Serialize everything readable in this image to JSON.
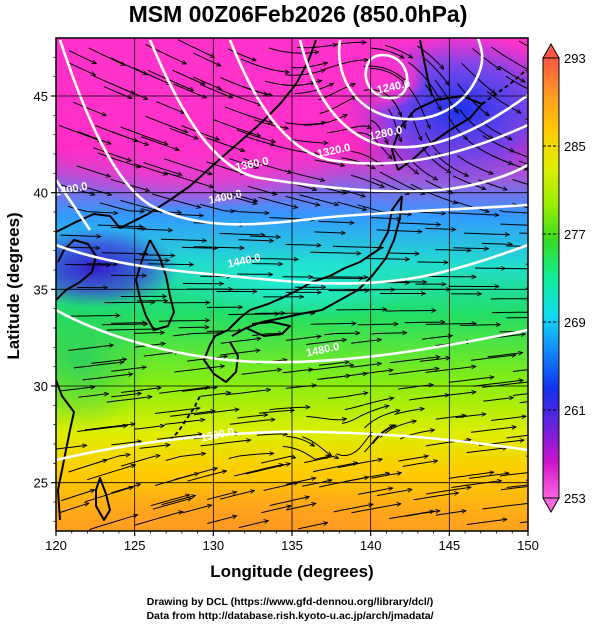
{
  "chart_data": {
    "type": "heatmap",
    "title": "MSM 00Z06Feb2026 (850.0hPa)",
    "xlabel": "Longitude (degrees)",
    "ylabel": "Latitude  (degrees)",
    "xlim": [
      120,
      150
    ],
    "ylim": [
      22.5,
      48
    ],
    "xticks": [
      120,
      125,
      130,
      135,
      140,
      145,
      150
    ],
    "yticks": [
      25,
      30,
      35,
      40,
      45
    ],
    "grid": true,
    "colorbar": {
      "min": 253,
      "max": 293,
      "ticks": [
        253,
        261,
        269,
        277,
        285,
        293
      ],
      "colors": [
        "#ff66dd",
        "#cc11cc",
        "#6622dd",
        "#1133ee",
        "#1188ff",
        "#11ddee",
        "#11ee99",
        "#33dd22",
        "#99ee00",
        "#ddee00",
        "#ffcc00",
        "#ff9922",
        "#ff5544"
      ]
    },
    "contours": {
      "color": "#ffffff",
      "labels": [
        {
          "text": "1240.0",
          "lon": 141.5,
          "lat": 45.3
        },
        {
          "text": "1280.0",
          "lon": 141.0,
          "lat": 42.9
        },
        {
          "text": "1320.0",
          "lon": 137.7,
          "lat": 42.0
        },
        {
          "text": "1360.0",
          "lon": 132.5,
          "lat": 41.3
        },
        {
          "text": "1400.0",
          "lon": 130.8,
          "lat": 39.6
        },
        {
          "text": "1400.0",
          "lon": 121.0,
          "lat": 40.0
        },
        {
          "text": "1440.0",
          "lon": 132.0,
          "lat": 36.3
        },
        {
          "text": "1480.0",
          "lon": 137.0,
          "lat": 31.7
        },
        {
          "text": "1520.0",
          "lon": 130.3,
          "lat": 27.3
        }
      ]
    }
  },
  "credits": {
    "line1": "Drawing by DCL (https://www.gfd-dennou.org/library/dcl/)",
    "line2": "Data from http://database.rish.kyoto-u.ac.jp/arch/jmadata/"
  }
}
